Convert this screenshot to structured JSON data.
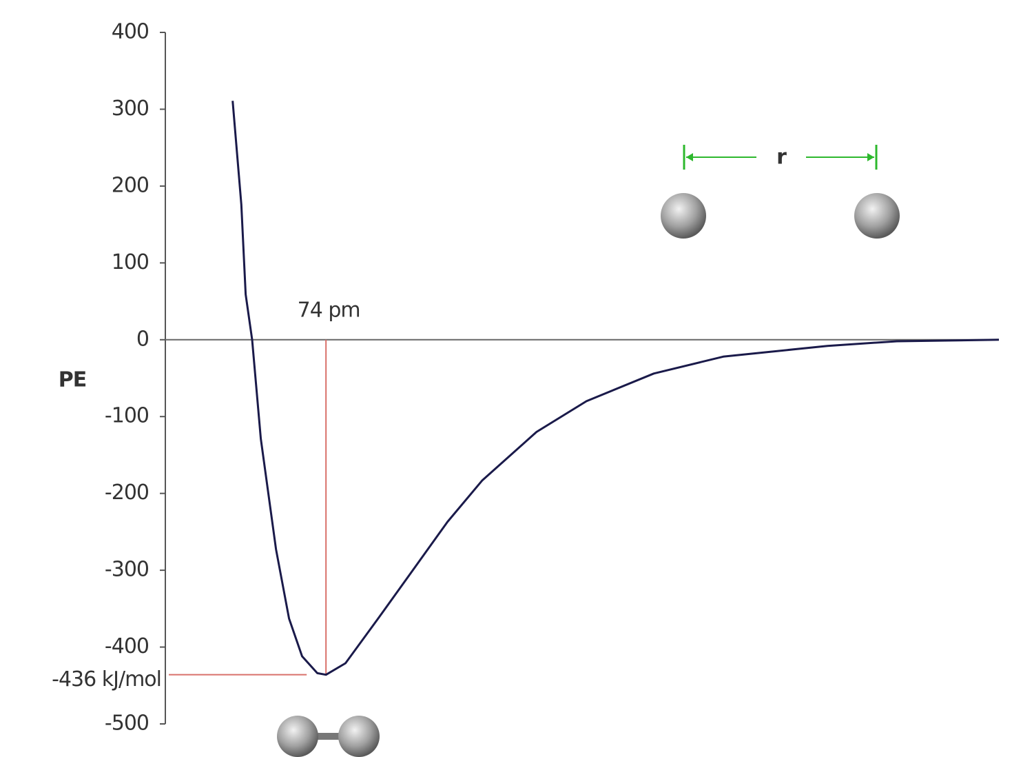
{
  "chart_data": {
    "type": "line",
    "y_label": "PE",
    "x": [
      31,
      35,
      37,
      40,
      44,
      51,
      57,
      63,
      70,
      74,
      83,
      98,
      114,
      130,
      146,
      171,
      194,
      225,
      257,
      305,
      337,
      384
    ],
    "series": [
      {
        "color": "#1a1a4a",
        "values": [
          311,
          176,
          59,
          0,
          -129,
          -273,
          -363,
          -412,
          -434,
          -436,
          -421,
          -363,
          -300,
          -237,
          -183,
          -120,
          -80,
          -44,
          -22,
          -8,
          -2,
          0
        ]
      }
    ],
    "xlim": [
      0,
      384
    ],
    "ylim": [
      -500,
      400
    ],
    "yticks": [
      400,
      300,
      200,
      100,
      0,
      -100,
      -200,
      -300,
      -400,
      -500
    ],
    "equilibrium": {
      "x": 74,
      "y": -436,
      "x_label": "74 pm",
      "y_label": "-436 kJ/mol",
      "color": "#d9706a"
    },
    "inset_label": "r"
  }
}
